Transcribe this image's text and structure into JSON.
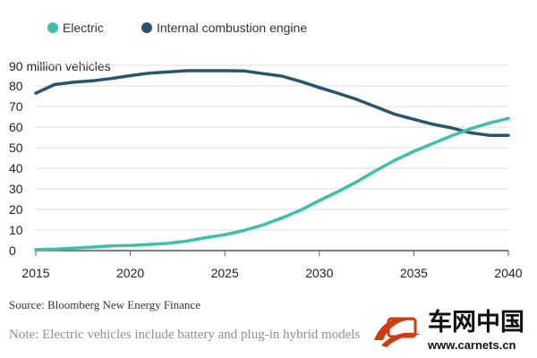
{
  "chart_data": {
    "type": "line",
    "unit_label": "90 million vehicles",
    "x": [
      2015,
      2016,
      2017,
      2018,
      2019,
      2020,
      2021,
      2022,
      2023,
      2024,
      2025,
      2026,
      2027,
      2028,
      2029,
      2030,
      2031,
      2032,
      2033,
      2034,
      2035,
      2036,
      2037,
      2038,
      2039,
      2040
    ],
    "series": [
      {
        "name": "Electric",
        "color": "#3dbfae",
        "values": [
          0.5,
          0.7,
          1.2,
          1.7,
          2.3,
          2.5,
          3.0,
          3.5,
          4.6,
          6.3,
          7.7,
          9.8,
          12.4,
          15.8,
          19.6,
          24.3,
          28.7,
          33.5,
          38.9,
          43.9,
          48.2,
          52.0,
          55.8,
          59.2,
          62.0,
          64.2
        ]
      },
      {
        "name": "Internal combustion engine",
        "color": "#27566b",
        "values": [
          76.5,
          80.7,
          81.8,
          82.5,
          83.6,
          85.0,
          86.2,
          86.8,
          87.4,
          87.4,
          87.4,
          87.3,
          86.0,
          84.8,
          82.2,
          79.2,
          76.4,
          73.4,
          69.8,
          66.2,
          63.8,
          61.4,
          59.6,
          57.2,
          56.0,
          56.0
        ]
      }
    ],
    "x_ticks": [
      "2015",
      "2020",
      "2025",
      "2030",
      "2035",
      "2040"
    ],
    "y_ticks": [
      "0",
      "10",
      "20",
      "30",
      "40",
      "50",
      "60",
      "70",
      "80"
    ],
    "xlim": [
      2015,
      2040
    ],
    "ylim": [
      0,
      90
    ],
    "grid": "horizontal",
    "legend_position": "top-left"
  },
  "source": "Source: Bloomberg New Energy Finance",
  "note": "Note: Electric vehicles include battery and plug-in hybrid models",
  "watermark": {
    "name": "车网中国",
    "url": "www.carnets.cn",
    "color": "#d4380d"
  }
}
